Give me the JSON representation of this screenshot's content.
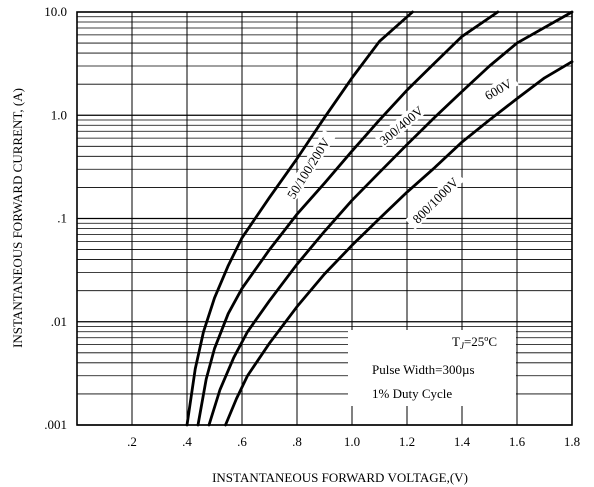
{
  "chart_data": {
    "type": "line",
    "y_scale": "log",
    "xlabel": "INSTANTANEOUS FORWARD VOLTAGE,(V)",
    "ylabel": "INSTANTANEOUS FORWARD CURRENT, (A)",
    "xlim": [
      0,
      1.8
    ],
    "ylim": [
      0.001,
      10
    ],
    "x_ticks": [
      {
        "value": 0.2,
        "label": ".2"
      },
      {
        "value": 0.4,
        "label": ".4"
      },
      {
        "value": 0.6,
        "label": ".6"
      },
      {
        "value": 0.8,
        "label": ".8"
      },
      {
        "value": 1.0,
        "label": "1.0"
      },
      {
        "value": 1.2,
        "label": "1.2"
      },
      {
        "value": 1.4,
        "label": "1.4"
      },
      {
        "value": 1.6,
        "label": "1.6"
      },
      {
        "value": 1.8,
        "label": "1.8"
      }
    ],
    "y_ticks": [
      {
        "value": 0.001,
        "label": ".001"
      },
      {
        "value": 0.01,
        "label": ".01"
      },
      {
        "value": 0.1,
        "label": ".1"
      },
      {
        "value": 1,
        "label": "1.0"
      },
      {
        "value": 10,
        "label": "10.0"
      }
    ],
    "grid": true,
    "series": [
      {
        "name": "50/100/200V",
        "x": [
          0.4,
          0.43,
          0.46,
          0.5,
          0.55,
          0.6,
          0.7,
          0.8,
          0.9,
          1.0,
          1.1,
          1.22
        ],
        "y": [
          0.001,
          0.0035,
          0.008,
          0.017,
          0.035,
          0.065,
          0.16,
          0.38,
          0.95,
          2.3,
          5.2,
          10
        ]
      },
      {
        "name": "300/400V",
        "x": [
          0.44,
          0.47,
          0.5,
          0.55,
          0.6,
          0.7,
          0.8,
          0.9,
          1.0,
          1.1,
          1.2,
          1.3,
          1.4,
          1.53
        ],
        "y": [
          0.001,
          0.0028,
          0.0055,
          0.012,
          0.021,
          0.05,
          0.11,
          0.22,
          0.45,
          0.9,
          1.75,
          3.2,
          5.8,
          10
        ]
      },
      {
        "name": "600V",
        "x": [
          0.48,
          0.52,
          0.57,
          0.62,
          0.7,
          0.8,
          0.9,
          1.0,
          1.1,
          1.2,
          1.3,
          1.4,
          1.5,
          1.6,
          1.8
        ],
        "y": [
          0.001,
          0.0022,
          0.0045,
          0.008,
          0.016,
          0.036,
          0.075,
          0.15,
          0.28,
          0.52,
          0.95,
          1.7,
          3.0,
          5.0,
          10
        ]
      },
      {
        "name": "800/1000V",
        "x": [
          0.54,
          0.58,
          0.62,
          0.7,
          0.8,
          0.9,
          1.0,
          1.1,
          1.2,
          1.3,
          1.4,
          1.5,
          1.6,
          1.7,
          1.8
        ],
        "y": [
          0.001,
          0.0018,
          0.003,
          0.0062,
          0.014,
          0.029,
          0.055,
          0.1,
          0.18,
          0.31,
          0.55,
          0.9,
          1.45,
          2.3,
          3.3
        ]
      }
    ],
    "annotations": {
      "temperature_prefix": "T",
      "temperature_subscript": "J",
      "temperature_value": "=25ºC",
      "pulse": "Pulse Width=300µs",
      "duty": "1% Duty Cycle"
    },
    "colors": {
      "line": "#000000",
      "grid": "#000000",
      "background": "#ffffff"
    }
  }
}
